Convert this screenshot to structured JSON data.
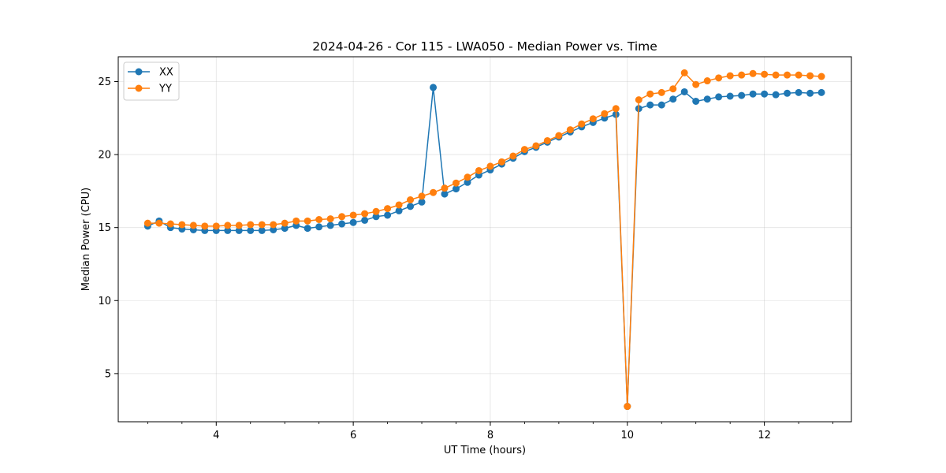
{
  "chart_data": {
    "type": "line",
    "title": "2024-04-26 - Cor 115 - LWA050 - Median Power vs. Time",
    "xlabel": "UT Time (hours)",
    "ylabel": "Median Power (CPU)",
    "xlim": [
      2.57,
      13.27
    ],
    "ylim": [
      1.7,
      26.7
    ],
    "xticks": [
      4,
      6,
      8,
      10,
      12
    ],
    "xtick_labels": [
      "4",
      "6",
      "8",
      "10",
      "12"
    ],
    "xminor_step": 0.5,
    "yticks": [
      5,
      10,
      15,
      20,
      25
    ],
    "ytick_labels": [
      "5",
      "10",
      "15",
      "20",
      "25"
    ],
    "grid": true,
    "legend_position": "top-left",
    "x": [
      3.0,
      3.167,
      3.333,
      3.5,
      3.667,
      3.833,
      4.0,
      4.167,
      4.333,
      4.5,
      4.667,
      4.833,
      5.0,
      5.167,
      5.333,
      5.5,
      5.667,
      5.833,
      6.0,
      6.167,
      6.333,
      6.5,
      6.667,
      6.833,
      7.0,
      7.167,
      7.333,
      7.5,
      7.667,
      7.833,
      8.0,
      8.167,
      8.333,
      8.5,
      8.667,
      8.833,
      9.0,
      9.167,
      9.333,
      9.5,
      9.667,
      9.833,
      10.0,
      10.167,
      10.333,
      10.5,
      10.667,
      10.833,
      11.0,
      11.167,
      11.333,
      11.5,
      11.667,
      11.833,
      12.0,
      12.167,
      12.333,
      12.5,
      12.667,
      12.833
    ],
    "series": [
      {
        "name": "XX",
        "color": "#1f77b4",
        "values": [
          15.1,
          15.45,
          15.0,
          14.9,
          14.85,
          14.8,
          14.8,
          14.8,
          14.8,
          14.8,
          14.8,
          14.85,
          14.95,
          15.15,
          14.95,
          15.05,
          15.15,
          15.25,
          15.35,
          15.5,
          15.75,
          15.85,
          16.15,
          16.45,
          16.75,
          24.6,
          17.3,
          17.65,
          18.1,
          18.6,
          18.95,
          19.35,
          19.75,
          20.2,
          20.5,
          20.85,
          21.2,
          21.55,
          21.9,
          22.2,
          22.5,
          22.75,
          2.75,
          23.15,
          23.4,
          23.4,
          23.8,
          24.3,
          23.65,
          23.8,
          23.95,
          24.0,
          24.05,
          24.15,
          24.15,
          24.1,
          24.2,
          24.25,
          24.2,
          24.25
        ]
      },
      {
        "name": "YY",
        "color": "#ff7f0e",
        "values": [
          15.3,
          15.3,
          15.25,
          15.2,
          15.15,
          15.1,
          15.1,
          15.15,
          15.15,
          15.2,
          15.2,
          15.2,
          15.3,
          15.45,
          15.45,
          15.55,
          15.6,
          15.75,
          15.85,
          15.95,
          16.1,
          16.3,
          16.55,
          16.9,
          17.15,
          17.4,
          17.7,
          18.05,
          18.45,
          18.9,
          19.2,
          19.5,
          19.9,
          20.35,
          20.6,
          20.95,
          21.3,
          21.7,
          22.1,
          22.45,
          22.8,
          23.15,
          2.75,
          23.75,
          24.15,
          24.25,
          24.5,
          25.6,
          24.8,
          25.05,
          25.25,
          25.4,
          25.45,
          25.55,
          25.5,
          25.45,
          25.45,
          25.45,
          25.4,
          25.35
        ]
      }
    ]
  }
}
